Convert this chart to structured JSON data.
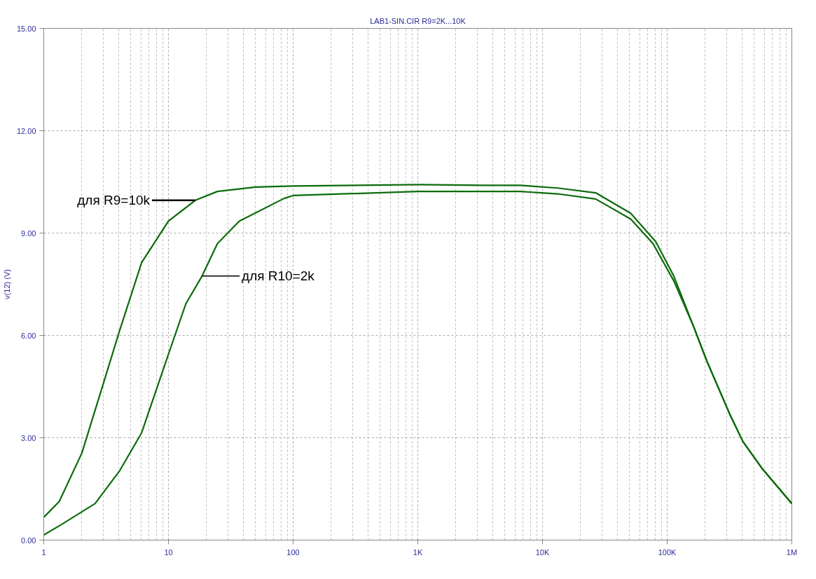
{
  "chart_data": {
    "type": "line",
    "title": "LAB1-SIN.CIR R9=2K...10K",
    "ylabel": "v(12) (V)",
    "log": "x",
    "xlim": [
      1,
      1000000
    ],
    "ylim": [
      0,
      15
    ],
    "xticks": [
      1,
      10,
      100,
      {
        "value": 1000,
        "label": "1K"
      },
      {
        "value": 10000,
        "label": "10K"
      },
      {
        "value": 100000,
        "label": "100K"
      },
      {
        "value": 1000000,
        "label": "1M"
      }
    ],
    "yticks": [
      {
        "value": 0,
        "label": "0.00"
      },
      {
        "value": 3,
        "label": "3.00"
      },
      {
        "value": 6,
        "label": "6.00"
      },
      {
        "value": 9,
        "label": "9.00"
      },
      {
        "value": 12,
        "label": "12.00"
      },
      {
        "value": 15,
        "label": "15.00"
      }
    ],
    "grid": true,
    "marker": "none",
    "line_style": "solid",
    "series": [
      {
        "color": "#0b6b0b",
        "x": [
          1,
          1.33,
          2.02,
          2.92,
          4.04,
          6.1,
          10,
          16.4,
          24.7,
          50,
          100,
          1000,
          3420,
          6600,
          13200,
          26700,
          51000,
          81000,
          113000,
          163000,
          208000,
          317000,
          405000,
          583000,
          1000000
        ],
        "values": [
          0.67,
          1.13,
          2.55,
          4.44,
          6.12,
          8.14,
          9.35,
          9.96,
          10.22,
          10.35,
          10.38,
          10.42,
          10.4,
          10.4,
          10.32,
          10.18,
          9.58,
          8.75,
          7.74,
          6.26,
          5.25,
          3.7,
          2.89,
          2.08,
          1.07
        ]
      },
      {
        "color": "#0b6b0b",
        "x": [
          1,
          1.39,
          2.58,
          4.04,
          6.1,
          10,
          13.8,
          18.6,
          24.7,
          37,
          85,
          100,
          1000,
          3420,
          6600,
          13200,
          26700,
          51000,
          77000,
          113000,
          163000,
          208000,
          317000,
          405000,
          583000,
          1000000
        ],
        "values": [
          0.15,
          0.46,
          1.07,
          2.02,
          3.15,
          5.45,
          6.93,
          7.74,
          8.69,
          9.35,
          10.02,
          10.1,
          10.22,
          10.22,
          10.22,
          10.15,
          10.0,
          9.41,
          8.69,
          7.6,
          6.26,
          5.25,
          3.7,
          2.89,
          2.08,
          1.07
        ]
      }
    ],
    "annotations": [
      {
        "text": "для R9=10k",
        "x": 16.4,
        "y": 9.96
      },
      {
        "text": "для R10=2k",
        "x": 18.6,
        "y": 7.74
      }
    ]
  }
}
